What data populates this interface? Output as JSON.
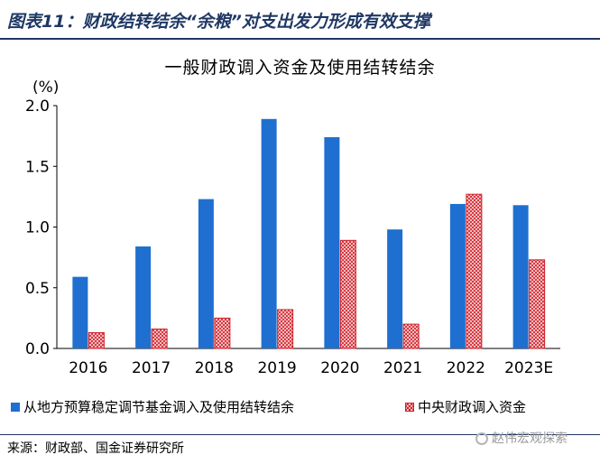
{
  "header": {
    "title": "图表11：财政结转结余“余粮”对支出发力形成有效支撑"
  },
  "chart_data": {
    "type": "bar",
    "title": "一般财政调入资金及使用结转结余",
    "ylabel": "(%)",
    "ylim": [
      0,
      2.0
    ],
    "yticks": [
      "0.0",
      "0.5",
      "1.0",
      "1.5",
      "2.0"
    ],
    "categories": [
      "2016",
      "2017",
      "2018",
      "2019",
      "2020",
      "2021",
      "2022",
      "2023E"
    ],
    "series": [
      {
        "name": "从地方预算稳定调节基金调入及使用结转结余",
        "color": "#1f6fd0",
        "values": [
          0.59,
          0.84,
          1.23,
          1.89,
          1.74,
          0.98,
          1.19,
          1.18
        ]
      },
      {
        "name": "中央财政调入资金",
        "color": "#d0202a",
        "values": [
          0.13,
          0.16,
          0.25,
          0.32,
          0.89,
          0.2,
          1.27,
          0.73
        ]
      }
    ],
    "legend": "bottom"
  },
  "footer": {
    "source": "来源：财政部、国金证券研究所",
    "watermark": "赵伟宏观探索"
  }
}
